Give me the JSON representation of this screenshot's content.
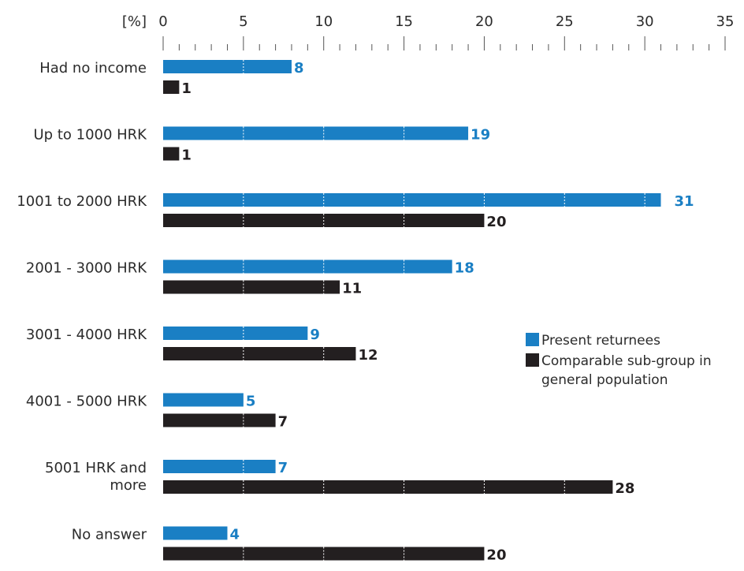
{
  "chart_data": {
    "type": "bar",
    "orientation": "horizontal",
    "unit_label": "[%]",
    "xlim": [
      0,
      35
    ],
    "xticks": [
      0,
      5,
      10,
      15,
      20,
      25,
      30,
      35
    ],
    "categories": [
      [
        "Had no income"
      ],
      [
        "Up to 1000 HRK"
      ],
      [
        "1001 to 2000 HRK"
      ],
      [
        "2001 - 3000 HRK"
      ],
      [
        "3001 - 4000 HRK"
      ],
      [
        "4001 - 5000 HRK"
      ],
      [
        "5001 HRK and",
        "more"
      ],
      [
        "No answer"
      ]
    ],
    "series": [
      {
        "name": "Present returnees",
        "color": "#1a7fc4",
        "values": [
          8,
          19,
          31,
          18,
          9,
          5,
          7,
          4
        ]
      },
      {
        "name": "Comparable sub-group in general population",
        "name_lines": [
          "Comparable sub-group in",
          "general population"
        ],
        "color": "#231f20",
        "values": [
          1,
          1,
          20,
          11,
          12,
          7,
          28,
          20
        ]
      }
    ],
    "grid": "dotted white lines inside bars at major ticks",
    "legend_position": "right-middle"
  }
}
